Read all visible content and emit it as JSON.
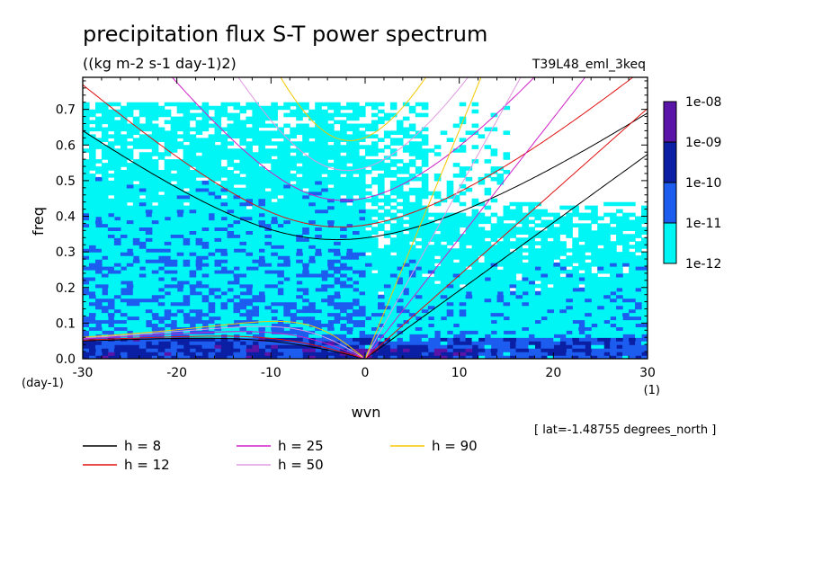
{
  "title": "precipitation flux S-T power spectrum",
  "units": "((kg m-2 s-1 day-1)2)",
  "dataset": "T39L48_eml_3keq",
  "latitude_note": "[ lat=-1.48755 degrees_north ]",
  "chart_data": {
    "type": "heatmap",
    "title": "precipitation flux S-T power spectrum",
    "xlabel": "wvn",
    "ylabel": "freq",
    "x_unit": "(1)",
    "y_unit": "(day-1)",
    "xlim": [
      -30,
      30
    ],
    "ylim": [
      0,
      0.79
    ],
    "x_ticks": [
      "-30",
      "-20",
      "-10",
      "0",
      "10",
      "20",
      "30"
    ],
    "x_tick_values": [
      -30,
      -20,
      -10,
      0,
      10,
      20,
      30
    ],
    "y_ticks": [
      "0.0",
      "0.1",
      "0.2",
      "0.3",
      "0.4",
      "0.5",
      "0.6",
      "0.7"
    ],
    "y_tick_values": [
      0,
      0.1,
      0.2,
      0.3,
      0.4,
      0.5,
      0.6,
      0.7
    ],
    "colorbar": {
      "levels": [
        "1e-08",
        "1e-09",
        "1e-10",
        "1e-11",
        "1e-12"
      ],
      "colors": [
        "#5a14a8",
        "#0a1fa3",
        "#1c5df0",
        "#00f5f5"
      ]
    },
    "dispersion_curves": [
      {
        "label": "h = 8",
        "h": 8,
        "color": "#000000"
      },
      {
        "label": "h = 12",
        "h": 12,
        "color": "#e01010"
      },
      {
        "label": "h = 25",
        "h": 25,
        "color": "#d020c8"
      },
      {
        "label": "h = 50",
        "h": 50,
        "color": "#e09ae0"
      },
      {
        "label": "h = 90",
        "h": 90,
        "color": "#f5c800"
      }
    ]
  }
}
